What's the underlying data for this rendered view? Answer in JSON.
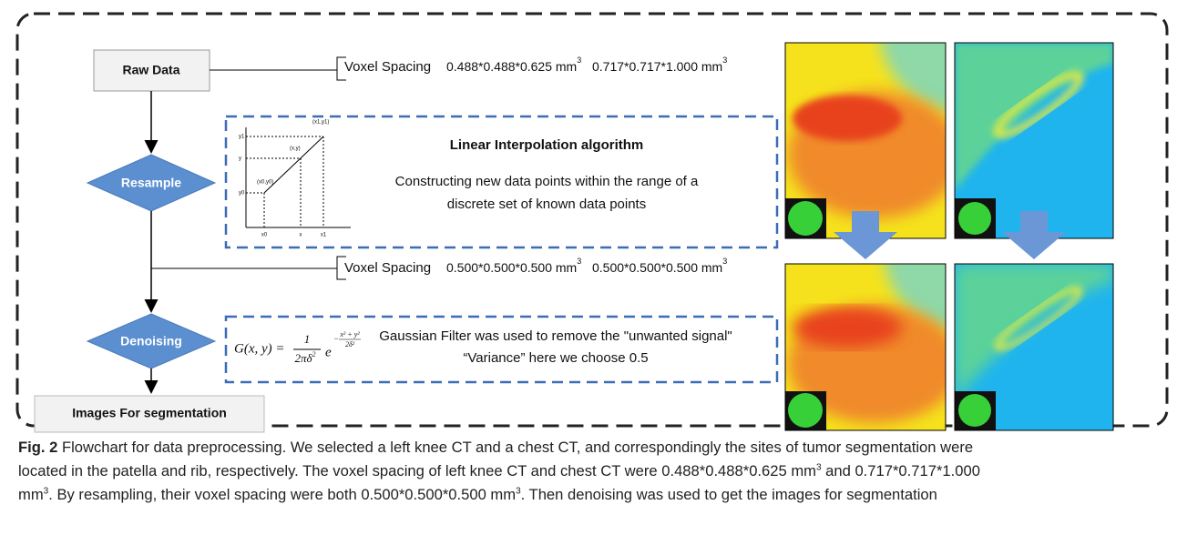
{
  "flowchart": {
    "raw_data": "Raw Data",
    "resample": "Resample",
    "denoising": "Denoising",
    "output": "Images For segmentation",
    "spacing_before": {
      "label": "Voxel Spacing",
      "values": [
        {
          "text": "0.488*0.488*0.625 mm",
          "sup": "3"
        },
        {
          "text": "0.717*0.717*1.000 mm",
          "sup": "3"
        }
      ]
    },
    "spacing_after": {
      "label": "Voxel Spacing",
      "values": [
        {
          "text": "0.500*0.500*0.500 mm",
          "sup": "3"
        },
        {
          "text": "0.500*0.500*0.500 mm",
          "sup": "3"
        }
      ]
    },
    "interpolation": {
      "title": "Linear Interpolation algorithm",
      "lines": [
        "Constructing new data points within the range of a",
        "discrete set of known data points"
      ],
      "graph": {
        "y_labels": [
          "y1",
          "y",
          "y0"
        ],
        "x_labels": [
          "x0",
          "x",
          "x1"
        ],
        "points": [
          "(x0,y0)",
          "(x,y)",
          "(x1,y1)"
        ]
      }
    },
    "gaussian": {
      "lines": [
        "Gaussian Filter was used to remove the \"unwanted signal\"",
        "“Variance” here we choose 0.5"
      ],
      "formula": {
        "lhs": "G(x, y) =",
        "num": "1",
        "den": "2πδ",
        "den_sup": "2",
        "base": "e",
        "exp_num": "x² + y²",
        "exp_den": "2δ²",
        "exp_sign": "−"
      }
    }
  },
  "caption": {
    "lines": [
      [
        {
          "text": "Fig. 2",
          "bold": true
        },
        {
          "text": " Flowchart for data preprocessing. We selected a left knee CT and a chest CT, and correspondingly the sites of tumor segmentation were"
        }
      ],
      [
        {
          "text": "located in the patella and rib, respectively. The voxel spacing of left knee CT and chest CT were 0.488*0.488*0.625 mm"
        },
        {
          "text": "3",
          "sup": true
        },
        {
          "text": " and 0.717*0.717*1.000"
        }
      ],
      [
        {
          "text": "mm"
        },
        {
          "text": "3",
          "sup": true
        },
        {
          "text": ". By resampling, their voxel spacing were both 0.500*0.500*0.500 mm"
        },
        {
          "text": "3",
          "sup": true
        },
        {
          "text": ". Then denoising was used to get the images for segmentation"
        }
      ]
    ]
  }
}
